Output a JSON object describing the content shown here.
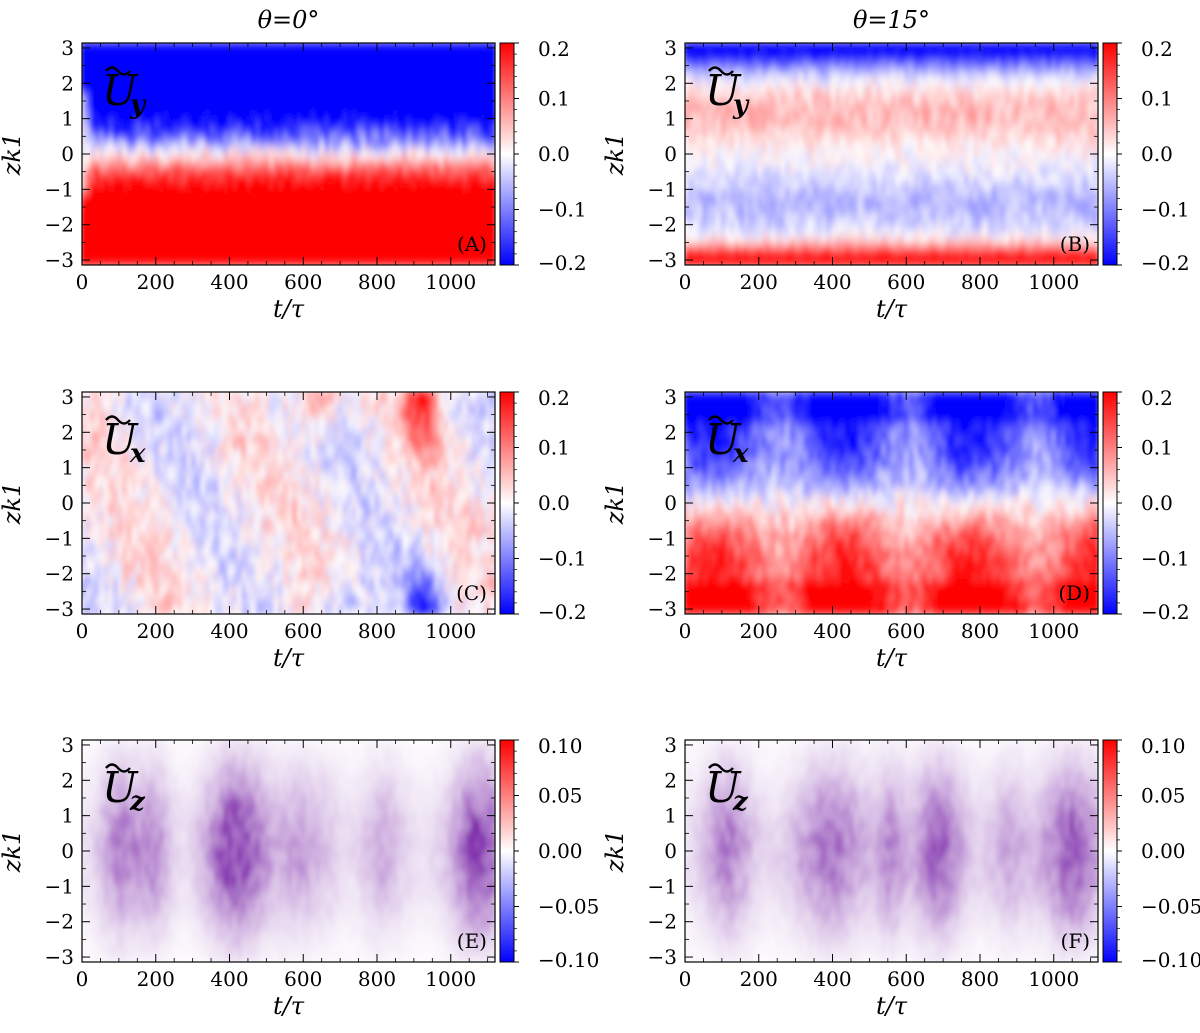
{
  "columns": [
    {
      "title": "θ=0°"
    },
    {
      "title": "θ=15°"
    }
  ],
  "chart_data": [
    {
      "type": "heatmap",
      "panel": "(A)",
      "quantity": "Ũy",
      "field_label": "U",
      "field_sub": "y",
      "xlabel": "t/τ",
      "ylabel": "zk1",
      "xlim": [
        0,
        1120
      ],
      "ylim": [
        -3.14,
        3.14
      ],
      "xticks": [
        "0",
        "200",
        "400",
        "600",
        "800",
        "1000"
      ],
      "yticks": [
        "3",
        "2",
        "1",
        "0",
        "−1",
        "−2",
        "−3"
      ],
      "color_range": [
        -0.2,
        0.2
      ],
      "colorbar_ticks": [
        "0.2",
        "0.1",
        "0.0",
        "−0.1",
        "−0.2"
      ],
      "pattern": "sheared: negative (blue, ≈ −0.2) for zk1 > 0.5, positive (red, ≈ +0.2) for zk1 < −0.5, steady after t/τ ≈ 50"
    },
    {
      "type": "heatmap",
      "panel": "(B)",
      "quantity": "Ũy",
      "field_label": "U",
      "field_sub": "y",
      "xlabel": "t/τ",
      "ylabel": "zk1",
      "xlim": [
        0,
        1120
      ],
      "ylim": [
        -3.14,
        3.14
      ],
      "xticks": [
        "0",
        "200",
        "400",
        "600",
        "800",
        "1000"
      ],
      "yticks": [
        "3",
        "2",
        "1",
        "0",
        "−1",
        "−2",
        "−3"
      ],
      "color_range": [
        -0.2,
        0.2
      ],
      "colorbar_ticks": [
        "0.2",
        "0.1",
        "0.0",
        "−0.1",
        "−0.2"
      ],
      "pattern": "blue band near zk1 ≈ 3, weak red near zk1 ≈ 1, weak blue near zk1 ≈ −1.5, red band near zk1 ≈ −3"
    },
    {
      "type": "heatmap",
      "panel": "(C)",
      "quantity": "Ũx",
      "field_label": "U",
      "field_sub": "x",
      "xlabel": "t/τ",
      "ylabel": "zk1",
      "xlim": [
        0,
        1120
      ],
      "ylim": [
        -3.14,
        3.14
      ],
      "xticks": [
        "0",
        "200",
        "400",
        "600",
        "800",
        "1000"
      ],
      "yticks": [
        "3",
        "2",
        "1",
        "0",
        "−1",
        "−2",
        "−3"
      ],
      "color_range": [
        -0.2,
        0.2
      ],
      "colorbar_ticks": [
        "0.2",
        "0.1",
        "0.0",
        "−0.1",
        "−0.2"
      ],
      "pattern": "weak noisy fluctuations; red burst at top and blue burst at bottom near t/τ ≈ 900–950"
    },
    {
      "type": "heatmap",
      "panel": "(D)",
      "quantity": "Ũx",
      "field_label": "U",
      "field_sub": "x",
      "xlabel": "t/τ",
      "ylabel": "zk1",
      "xlim": [
        0,
        1120
      ],
      "ylim": [
        -3.14,
        3.14
      ],
      "xticks": [
        "0",
        "200",
        "400",
        "600",
        "800",
        "1000"
      ],
      "yticks": [
        "3",
        "2",
        "1",
        "0",
        "−1",
        "−2",
        "−3"
      ],
      "color_range": [
        -0.2,
        0.2
      ],
      "colorbar_ticks": [
        "0.2",
        "0.1",
        "0.0",
        "−0.1",
        "−0.2"
      ],
      "pattern": "negative (blue) upper half, positive (red) lower half, strongest at zk1 ≈ ±3"
    },
    {
      "type": "heatmap",
      "panel": "(E)",
      "quantity": "Ũz",
      "field_label": "U",
      "field_sub": "z",
      "xlabel": "t/τ",
      "ylabel": "zk1",
      "xlim": [
        0,
        1120
      ],
      "ylim": [
        -3.14,
        3.14
      ],
      "xticks": [
        "0",
        "200",
        "400",
        "600",
        "800",
        "1000"
      ],
      "yticks": [
        "3",
        "2",
        "1",
        "0",
        "−1",
        "−2",
        "−3"
      ],
      "color_range": [
        -0.1,
        0.1
      ],
      "colorbar_ticks": [
        "0.10",
        "0.05",
        "0.00",
        "−0.05",
        "−0.10"
      ],
      "pattern": "fine purple striations, darker patches near t/τ ≈ 100, 420 and 1080"
    },
    {
      "type": "heatmap",
      "panel": "(F)",
      "quantity": "Ũz",
      "field_label": "U",
      "field_sub": "z",
      "xlabel": "t/τ",
      "ylabel": "zk1",
      "xlim": [
        0,
        1120
      ],
      "ylim": [
        -3.14,
        3.14
      ],
      "xticks": [
        "0",
        "200",
        "400",
        "600",
        "800",
        "1000"
      ],
      "yticks": [
        "3",
        "2",
        "1",
        "0",
        "−1",
        "−2",
        "−3"
      ],
      "color_range": [
        -0.1,
        0.1
      ],
      "colorbar_ticks": [
        "0.10",
        "0.05",
        "0.00",
        "−0.05",
        "−0.10"
      ],
      "pattern": "fine purple striations, darker patches near t/τ ≈ 120, 400, 700 and 1050"
    }
  ]
}
